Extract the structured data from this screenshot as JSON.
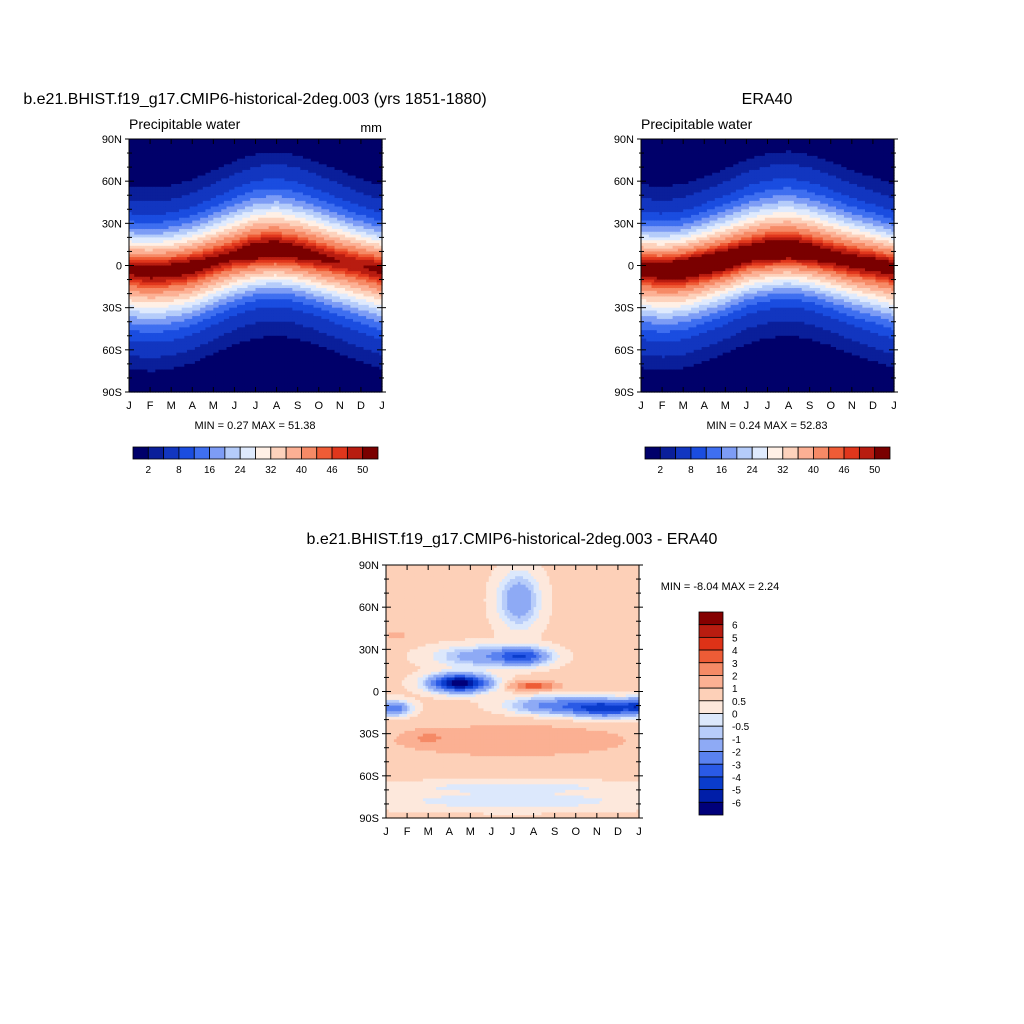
{
  "chart_data": [
    {
      "type": "heatmap",
      "title": "b.e21.BHIST.f19_g17.CMIP6-historical-2deg.003 (yrs 1851-1880)",
      "left_label": "Precipitable water",
      "right_label": "mm",
      "x_ticks": [
        "J",
        "F",
        "M",
        "A",
        "M",
        "J",
        "J",
        "A",
        "S",
        "O",
        "N",
        "D",
        "J"
      ],
      "y_ticks": [
        "90N",
        "60N",
        "30N",
        "0",
        "30S",
        "60S",
        "90S"
      ],
      "ylim": [
        -90,
        90
      ],
      "stats": "MIN =   0.27 MAX =  51.38",
      "z_min": 0.27,
      "z_max": 51.38,
      "colorbar": {
        "orientation": "horizontal",
        "levels": [
          2,
          4,
          8,
          12,
          16,
          20,
          24,
          28,
          32,
          36,
          40,
          44,
          46,
          48,
          50
        ],
        "labels": [
          "2",
          "8",
          "16",
          "24",
          "32",
          "40",
          "46",
          "50"
        ],
        "colors": [
          "#00006a",
          "#0a1f9a",
          "#1236c0",
          "#1a4de0",
          "#3f6ff0",
          "#7d9cf5",
          "#b5ccfa",
          "#dfeafd",
          "#fff0e6",
          "#fdd2bc",
          "#fcb094",
          "#f68a66",
          "#ef5c36",
          "#e0361c",
          "#b81c10",
          "#7a0000"
        ]
      },
      "field": {
        "itcz_lat": [
          -3,
          -4,
          -3,
          -1,
          3,
          7,
          10,
          11,
          9,
          6,
          3,
          0,
          -3
        ],
        "peak": [
          49,
          50,
          50,
          50,
          49,
          49,
          51,
          51,
          50,
          49,
          48,
          48,
          49
        ]
      }
    },
    {
      "type": "heatmap",
      "title": "ERA40",
      "left_label": "Precipitable water",
      "right_label": "",
      "x_ticks": [
        "J",
        "F",
        "M",
        "A",
        "M",
        "J",
        "J",
        "A",
        "S",
        "O",
        "N",
        "D",
        "J"
      ],
      "y_ticks": [
        "90N",
        "60N",
        "30N",
        "0",
        "30S",
        "60S",
        "90S"
      ],
      "ylim": [
        -90,
        90
      ],
      "stats": "MIN =   0.24 MAX =  52.83",
      "z_min": 0.24,
      "z_max": 52.83,
      "colorbar": {
        "orientation": "horizontal",
        "levels": [
          2,
          4,
          8,
          12,
          16,
          20,
          24,
          28,
          32,
          36,
          40,
          44,
          46,
          48,
          50
        ],
        "labels": [
          "2",
          "8",
          "16",
          "24",
          "32",
          "40",
          "46",
          "50"
        ],
        "colors": [
          "#00006a",
          "#0a1f9a",
          "#1236c0",
          "#1a4de0",
          "#3f6ff0",
          "#7d9cf5",
          "#b5ccfa",
          "#dfeafd",
          "#fff0e6",
          "#fdd2bc",
          "#fcb094",
          "#f68a66",
          "#ef5c36",
          "#e0361c",
          "#b81c10",
          "#7a0000"
        ]
      },
      "field": {
        "itcz_lat": [
          -2,
          -3,
          -2,
          1,
          4,
          8,
          10,
          11,
          9,
          6,
          3,
          1,
          -2
        ],
        "peak": [
          50,
          51,
          52,
          52,
          52,
          51,
          52,
          52,
          51,
          50,
          50,
          50,
          50
        ]
      }
    },
    {
      "type": "heatmap",
      "title": "b.e21.BHIST.f19_g17.CMIP6-historical-2deg.003 - ERA40",
      "left_label": "",
      "right_label": "",
      "x_ticks": [
        "J",
        "F",
        "M",
        "A",
        "M",
        "J",
        "J",
        "A",
        "S",
        "O",
        "N",
        "D",
        "J"
      ],
      "y_ticks": [
        "90N",
        "60N",
        "30N",
        "0",
        "30S",
        "60S",
        "90S"
      ],
      "ylim": [
        -90,
        90
      ],
      "stats": "MIN =  -8.04 MAX =   2.24",
      "z_min": -8.04,
      "z_max": 2.24,
      "colorbar": {
        "orientation": "vertical",
        "levels": [
          -6,
          -5,
          -4,
          -3,
          -2,
          -1,
          -0.5,
          0,
          0.5,
          1,
          2,
          3,
          4,
          5,
          6
        ],
        "labels": [
          "-6",
          "-5",
          "-4",
          "-3",
          "-2",
          "-1",
          "-0.5",
          "0",
          "0.5",
          "1",
          "2",
          "3",
          "4",
          "5",
          "6"
        ],
        "colors": [
          "#00007a",
          "#001ea8",
          "#0a3ccc",
          "#2a5ae6",
          "#5a82f0",
          "#8eaaf5",
          "#b8cdfa",
          "#dce8fc",
          "#fde8dc",
          "#fdd0b8",
          "#fbb093",
          "#f58a66",
          "#ee5c36",
          "#de3217",
          "#b81c10",
          "#850000"
        ]
      }
    }
  ]
}
